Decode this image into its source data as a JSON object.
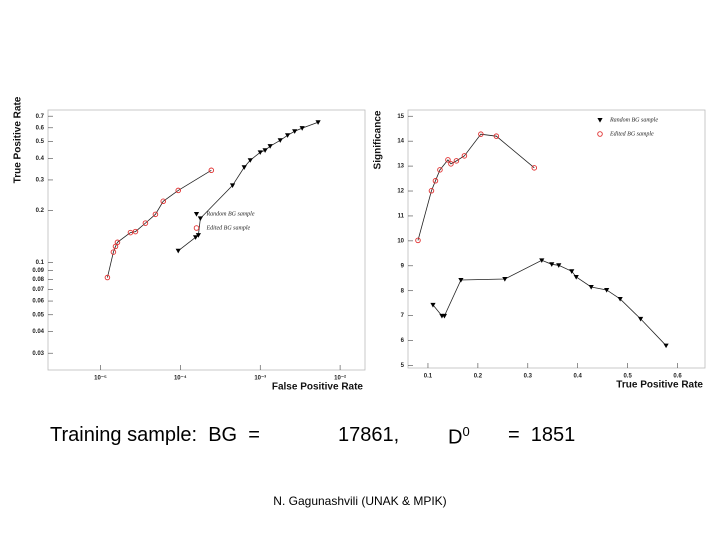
{
  "chart_data": [
    {
      "type": "scatter",
      "xlabel": "False Positive Rate",
      "ylabel": "True Positive Rate",
      "xlog": true,
      "ylog": true,
      "xlim": [
        2.2e-06,
        0.0205
      ],
      "ylim": [
        0.024,
        0.76
      ],
      "xticks": [
        {
          "value": 1e-05,
          "label": "10⁻⁵"
        },
        {
          "value": 0.0001,
          "label": "10⁻⁴"
        },
        {
          "value": 0.001,
          "label": "10⁻³"
        },
        {
          "value": 0.01,
          "label": "10⁻²"
        }
      ],
      "yticks": [
        0.7,
        0.6,
        0.5,
        0.4,
        0.3,
        0.2,
        0.1,
        0.09,
        0.08,
        0.07,
        0.06,
        0.05,
        0.04,
        0.03
      ],
      "legend_loc": "center",
      "line_color": "#222222",
      "series": [
        {
          "name": "Random BG sample",
          "color": "#000000",
          "marker": "triangle-down",
          "x": [
            9.4e-05,
            0.000155,
            0.000168,
            0.000178,
            0.00045,
            0.00063,
            0.00075,
            0.001,
            0.00115,
            0.00133,
            0.00178,
            0.0022,
            0.0027,
            0.00335,
            0.0053
          ],
          "values": [
            0.117,
            0.14,
            0.144,
            0.18,
            0.279,
            0.355,
            0.39,
            0.433,
            0.445,
            0.47,
            0.508,
            0.543,
            0.573,
            0.597,
            0.646
          ]
        },
        {
          "name": "Edited BG sample",
          "color": "#e03030",
          "marker": "circle",
          "x": [
            1.22e-05,
            1.45e-05,
            1.54e-05,
            1.63e-05,
            2.37e-05,
            2.74e-05,
            3.65e-05,
            4.87e-05,
            6.1e-05,
            9.4e-05,
            0.000244
          ],
          "values": [
            0.082,
            0.115,
            0.124,
            0.131,
            0.149,
            0.151,
            0.169,
            0.19,
            0.226,
            0.261,
            0.341
          ]
        }
      ]
    },
    {
      "type": "scatter",
      "xlabel": "True Positive Rate",
      "ylabel": "Significance",
      "xlog": false,
      "ylog": false,
      "xlim": [
        0.06,
        0.655
      ],
      "ylim": [
        4.9,
        15.25
      ],
      "xticks": [
        0.1,
        0.2,
        0.3,
        0.4,
        0.5,
        0.6
      ],
      "yticks": [
        5,
        6,
        7,
        8,
        9,
        10,
        11,
        12,
        13,
        14,
        15
      ],
      "legend_loc": "upper right",
      "line_color": "#222222",
      "series": [
        {
          "name": "Random BG sample",
          "color": "#000000",
          "marker": "triangle-down",
          "x": [
            0.11,
            0.128,
            0.133,
            0.166,
            0.254,
            0.328,
            0.348,
            0.362,
            0.388,
            0.397,
            0.427,
            0.458,
            0.485,
            0.526,
            0.577
          ],
          "values": [
            7.43,
            6.99,
            6.99,
            8.43,
            8.47,
            9.22,
            9.06,
            9.02,
            8.78,
            8.55,
            8.15,
            8.03,
            7.67,
            6.87,
            5.8
          ]
        },
        {
          "name": "Edited BG sample",
          "color": "#e03030",
          "marker": "circle",
          "x": [
            0.08,
            0.107,
            0.115,
            0.124,
            0.14,
            0.146,
            0.157,
            0.173,
            0.206,
            0.237,
            0.313
          ],
          "values": [
            10.02,
            12.01,
            12.41,
            12.85,
            13.25,
            13.09,
            13.21,
            13.41,
            14.28,
            14.2,
            12.93
          ]
        }
      ]
    }
  ],
  "slide": {
    "training_label": "Training sample:  BG  =",
    "bg_count": "17861,",
    "d_symbol": "D",
    "d_superscript": "0",
    "d_count": "=  1851",
    "footer": "N. Gagunashvili (UNAK & MPIK)"
  }
}
